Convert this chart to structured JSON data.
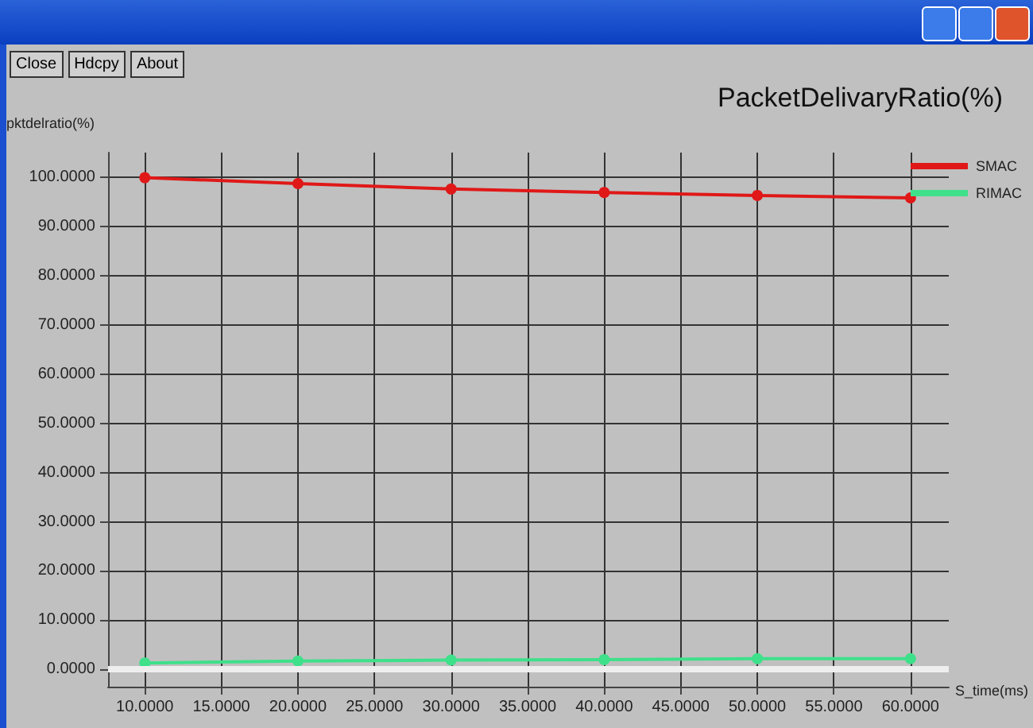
{
  "chart_data": {
    "type": "line",
    "title": "PacketDelivaryRatio(%)",
    "ylabel": "pktdelratio(%)",
    "xlabel": "S_time(ms)",
    "annotations": [
      "Close",
      "Hdcpy",
      "About"
    ],
    "x": [
      10,
      20,
      30,
      40,
      50,
      60
    ],
    "series": [
      {
        "name": "SMAC",
        "color": "#e01818",
        "values": [
          99.9,
          98.7,
          97.6,
          96.9,
          96.3,
          95.8
        ]
      },
      {
        "name": "RIMAC",
        "color": "#3ee08a",
        "values": [
          1.3,
          1.7,
          1.9,
          2.0,
          2.2,
          2.2
        ]
      }
    ],
    "xlim": [
      7.6,
      62.5
    ],
    "xticks": [
      {
        "value": 10,
        "label": "10.0000"
      },
      {
        "value": 15,
        "label": "15.0000"
      },
      {
        "value": 20,
        "label": "20.0000"
      },
      {
        "value": 25,
        "label": "25.0000"
      },
      {
        "value": 30,
        "label": "30.0000"
      },
      {
        "value": 35,
        "label": "35.0000"
      },
      {
        "value": 40,
        "label": "40.0000"
      },
      {
        "value": 45,
        "label": "45.0000"
      },
      {
        "value": 50,
        "label": "50.0000"
      },
      {
        "value": 55,
        "label": "55.0000"
      },
      {
        "value": 60,
        "label": "60.0000"
      }
    ],
    "ylim": [
      -3.5,
      105
    ],
    "yticks": [
      {
        "value": 0,
        "label": "0.0000"
      },
      {
        "value": 10,
        "label": "10.0000"
      },
      {
        "value": 20,
        "label": "20.0000"
      },
      {
        "value": 30,
        "label": "30.0000"
      },
      {
        "value": 40,
        "label": "40.0000"
      },
      {
        "value": 50,
        "label": "50.0000"
      },
      {
        "value": 60,
        "label": "60.0000"
      },
      {
        "value": 70,
        "label": "70.0000"
      },
      {
        "value": 80,
        "label": "80.0000"
      },
      {
        "value": 90,
        "label": "90.0000"
      },
      {
        "value": 100,
        "label": "100.0000"
      }
    ],
    "ref_lines": [
      {
        "axis": "y",
        "value": 0,
        "color": "#eeeeee"
      }
    ],
    "grid": true,
    "legend": "top right",
    "marker": "circle",
    "line_style": "solid"
  }
}
